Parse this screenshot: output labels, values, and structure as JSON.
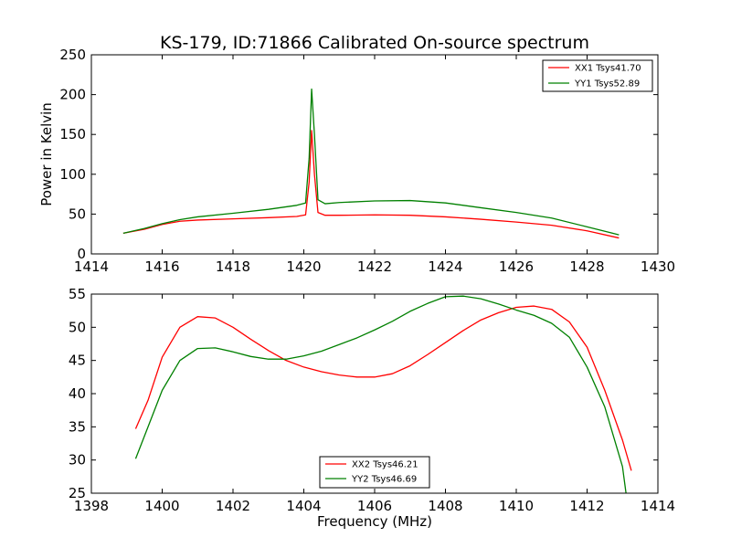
{
  "chart_data": [
    {
      "type": "line",
      "title": "KS-179, ID:71866 Calibrated On-source spectrum",
      "xlabel": "",
      "ylabel": "Power in Kelvin",
      "xlim": [
        1414,
        1430
      ],
      "ylim": [
        0,
        250
      ],
      "xticks": [
        "1414",
        "1416",
        "1418",
        "1420",
        "1422",
        "1424",
        "1426",
        "1428",
        "1430"
      ],
      "yticks": [
        "0",
        "50",
        "100",
        "150",
        "200",
        "250"
      ],
      "grid": false,
      "legend_position": "top-right",
      "series": [
        {
          "name": "XX1 Tsys41.70",
          "color": "#ff0000",
          "points": [
            [
              1414.9,
              26
            ],
            [
              1415.5,
              31
            ],
            [
              1416,
              37
            ],
            [
              1416.5,
              41
            ],
            [
              1417,
              42.5
            ],
            [
              1418,
              44
            ],
            [
              1419,
              45.5
            ],
            [
              1419.8,
              47
            ],
            [
              1420.05,
              49
            ],
            [
              1420.15,
              90
            ],
            [
              1420.22,
              155
            ],
            [
              1420.3,
              100
            ],
            [
              1420.4,
              52
            ],
            [
              1420.6,
              48.5
            ],
            [
              1421,
              48.5
            ],
            [
              1422,
              49
            ],
            [
              1423,
              48.5
            ],
            [
              1424,
              46.5
            ],
            [
              1425,
              43.5
            ],
            [
              1426,
              40
            ],
            [
              1427,
              36
            ],
            [
              1428,
              29
            ],
            [
              1428.9,
              20
            ]
          ]
        },
        {
          "name": "YY1 Tsys52.89",
          "color": "#008000",
          "points": [
            [
              1414.9,
              26
            ],
            [
              1415.5,
              32
            ],
            [
              1416,
              38
            ],
            [
              1416.5,
              43
            ],
            [
              1417,
              46.5
            ],
            [
              1418,
              51
            ],
            [
              1419,
              56
            ],
            [
              1419.8,
              61
            ],
            [
              1420.05,
              64
            ],
            [
              1420.15,
              120
            ],
            [
              1420.22,
              207
            ],
            [
              1420.3,
              150
            ],
            [
              1420.4,
              68
            ],
            [
              1420.6,
              63
            ],
            [
              1421,
              64.5
            ],
            [
              1422,
              66.5
            ],
            [
              1423,
              67
            ],
            [
              1424,
              64
            ],
            [
              1425,
              58
            ],
            [
              1426,
              52
            ],
            [
              1427,
              45
            ],
            [
              1428,
              34
            ],
            [
              1428.9,
              24
            ]
          ]
        }
      ]
    },
    {
      "type": "line",
      "title": "",
      "xlabel": "Frequency (MHz)",
      "ylabel": "",
      "xlim": [
        1398,
        1414
      ],
      "ylim": [
        25,
        55
      ],
      "xticks": [
        "1398",
        "1400",
        "1402",
        "1404",
        "1406",
        "1408",
        "1410",
        "1412",
        "1414"
      ],
      "yticks": [
        "25",
        "30",
        "35",
        "40",
        "45",
        "50",
        "55"
      ],
      "grid": false,
      "legend_position": "bottom-center",
      "series": [
        {
          "name": "XX2 Tsys46.21",
          "color": "#ff0000",
          "points": [
            [
              1399.25,
              34.7
            ],
            [
              1399.6,
              39
            ],
            [
              1400,
              45.5
            ],
            [
              1400.5,
              50
            ],
            [
              1401,
              51.6
            ],
            [
              1401.5,
              51.4
            ],
            [
              1402,
              50
            ],
            [
              1402.5,
              48.2
            ],
            [
              1403,
              46.5
            ],
            [
              1403.5,
              45
            ],
            [
              1404,
              44
            ],
            [
              1404.5,
              43.3
            ],
            [
              1405,
              42.8
            ],
            [
              1405.5,
              42.5
            ],
            [
              1406,
              42.5
            ],
            [
              1406.5,
              43
            ],
            [
              1407,
              44.2
            ],
            [
              1407.5,
              45.9
            ],
            [
              1408,
              47.7
            ],
            [
              1408.5,
              49.5
            ],
            [
              1409,
              51.1
            ],
            [
              1409.5,
              52.2
            ],
            [
              1410,
              53
            ],
            [
              1410.5,
              53.2
            ],
            [
              1411,
              52.7
            ],
            [
              1411.5,
              50.8
            ],
            [
              1412,
              47
            ],
            [
              1412.5,
              40.5
            ],
            [
              1413,
              33
            ],
            [
              1413.25,
              28.4
            ]
          ]
        },
        {
          "name": "YY2 Tsys46.69",
          "color": "#008000",
          "points": [
            [
              1399.25,
              30.2
            ],
            [
              1399.6,
              35
            ],
            [
              1400,
              40.5
            ],
            [
              1400.5,
              45
            ],
            [
              1401,
              46.8
            ],
            [
              1401.5,
              46.9
            ],
            [
              1402,
              46.3
            ],
            [
              1402.5,
              45.6
            ],
            [
              1403,
              45.2
            ],
            [
              1403.5,
              45.2
            ],
            [
              1404,
              45.7
            ],
            [
              1404.5,
              46.4
            ],
            [
              1405,
              47.4
            ],
            [
              1405.5,
              48.4
            ],
            [
              1406,
              49.6
            ],
            [
              1406.5,
              50.9
            ],
            [
              1407,
              52.4
            ],
            [
              1407.5,
              53.6
            ],
            [
              1408,
              54.6
            ],
            [
              1408.5,
              54.7
            ],
            [
              1409,
              54.3
            ],
            [
              1409.5,
              53.5
            ],
            [
              1410,
              52.6
            ],
            [
              1410.5,
              51.8
            ],
            [
              1411,
              50.6
            ],
            [
              1411.5,
              48.5
            ],
            [
              1412,
              44
            ],
            [
              1412.5,
              38
            ],
            [
              1413,
              29
            ],
            [
              1413.1,
              25
            ]
          ]
        }
      ]
    }
  ]
}
